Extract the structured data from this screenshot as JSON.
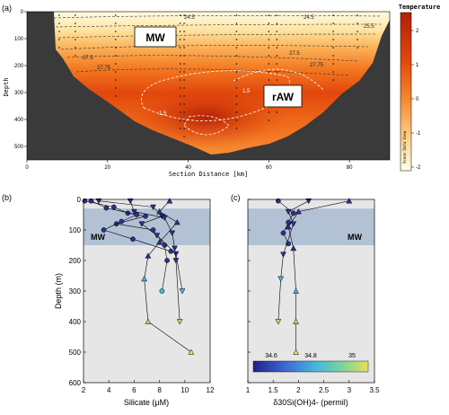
{
  "panels": {
    "a": "(a)",
    "b": "(b)",
    "c": "(c)"
  },
  "colors": {
    "land": "#3a3a3a",
    "panel_bg": "#e6e6e6",
    "mw_box": "#b3c1d4",
    "symbol_fill": "#2e2f92",
    "white_box": "#ffffff"
  },
  "chart_data": [
    {
      "type": "heatmap",
      "title": "Temperature",
      "xlabel": "Section Distance [km]",
      "ylabel": "Depth",
      "xlim": [
        0,
        90
      ],
      "ylim": [
        550,
        0
      ],
      "x_ticks": [
        "0",
        "20",
        "40",
        "60",
        "80"
      ],
      "y_ticks": [
        "0",
        "100",
        "200",
        "300",
        "400",
        "500"
      ],
      "colorbar": {
        "label": "Temperature",
        "ticks": [
          "2",
          "1",
          "0",
          "-1",
          "-2"
        ],
        "colors": [
          "#b21f05",
          "#e2470c",
          "#f7882f",
          "#fdd28c",
          "#fffde8"
        ],
        "side_text": "Ocean Data View"
      },
      "annotations": [
        "MW",
        "rAW"
      ],
      "contour_labels": [
        "24.5",
        "24.5",
        "25.5",
        "27.5",
        "27.5",
        "27.75",
        "27.75",
        "1.5",
        "1.5"
      ],
      "land_color": "#3a3a3a"
    },
    {
      "type": "line",
      "xlabel": "Silicate (μM)",
      "ylabel": "Depth (m)",
      "xlim": [
        2,
        12
      ],
      "ylim": [
        600,
        0
      ],
      "x_ticks": [
        "2",
        "4",
        "6",
        "8",
        "10",
        "12"
      ],
      "y_ticks": [
        "0",
        "100",
        "200",
        "300",
        "400",
        "500",
        "600"
      ],
      "band": {
        "label": "MW",
        "ymin": 30,
        "ymax": 150
      },
      "series": [
        {
          "marker": "circle",
          "points": [
            [
              2.1,
              5
            ],
            [
              4.4,
              25
            ],
            [
              5.5,
              45
            ],
            [
              6.9,
              55
            ],
            [
              4.6,
              80
            ],
            [
              7.5,
              100
            ],
            [
              8.4,
              150
            ],
            [
              8.6,
              200
            ],
            [
              8.2,
              300
            ]
          ]
        },
        {
          "marker": "circle",
          "points": [
            [
              2.6,
              5
            ],
            [
              3.8,
              28
            ],
            [
              6.2,
              50
            ],
            [
              5.0,
              72
            ],
            [
              3.6,
              100
            ],
            [
              5.9,
              130
            ],
            [
              8.9,
              170
            ]
          ]
        },
        {
          "marker": "triangle-down",
          "points": [
            [
              3.2,
              5
            ],
            [
              7.5,
              25
            ],
            [
              8.2,
              55
            ],
            [
              6.6,
              80
            ],
            [
              7.8,
              118
            ],
            [
              9.3,
              178
            ],
            [
              9.8,
              300
            ]
          ]
        },
        {
          "marker": "triangle-down",
          "points": [
            [
              5.7,
              5
            ],
            [
              6.0,
              40
            ],
            [
              8.4,
              60
            ],
            [
              9.0,
              110
            ],
            [
              9.2,
              160
            ],
            [
              9.3,
              200
            ],
            [
              9.6,
              400
            ]
          ]
        },
        {
          "marker": "triangle-up",
          "points": [
            [
              8.8,
              5
            ],
            [
              8.0,
              40
            ],
            [
              9.4,
              75
            ],
            [
              8.0,
              140
            ],
            [
              7.1,
              185
            ],
            [
              6.8,
              260
            ],
            [
              7.1,
              400
            ],
            [
              10.5,
              500
            ]
          ]
        }
      ]
    },
    {
      "type": "line",
      "xlabel": "δ30Si(OH)4- (permil)",
      "ylabel": "",
      "xlim": [
        1,
        3.5
      ],
      "ylim": [
        600,
        0
      ],
      "x_ticks": [
        "1",
        "1.5",
        "2",
        "2.5",
        "3",
        "3.5"
      ],
      "band": {
        "label": "MW",
        "ymin": 30,
        "ymax": 150
      },
      "colorbar": {
        "ticks": [
          "34.6",
          "34.8",
          "35"
        ],
        "colors": [
          "#20208c",
          "#3d6fd6",
          "#45b8dc",
          "#7ed39a",
          "#e8e05a"
        ]
      },
      "series": [
        {
          "marker": "circle",
          "points": [
            [
              1.6,
              5
            ],
            [
              1.9,
              45
            ],
            [
              1.8,
              75
            ],
            [
              1.7,
              110
            ],
            [
              1.8,
              145
            ]
          ]
        },
        {
          "marker": "triangle-down",
          "points": [
            [
              2.2,
              5
            ],
            [
              1.8,
              40
            ],
            [
              1.9,
              80
            ],
            [
              1.7,
              180
            ],
            [
              1.65,
              260
            ],
            [
              1.6,
              400
            ]
          ]
        },
        {
          "marker": "triangle-up",
          "points": [
            [
              3.0,
              5
            ],
            [
              2.0,
              40
            ],
            [
              1.8,
              90
            ],
            [
              1.9,
              160
            ],
            [
              1.95,
              300
            ],
            [
              1.95,
              400
            ],
            [
              1.95,
              500
            ]
          ]
        }
      ]
    }
  ]
}
